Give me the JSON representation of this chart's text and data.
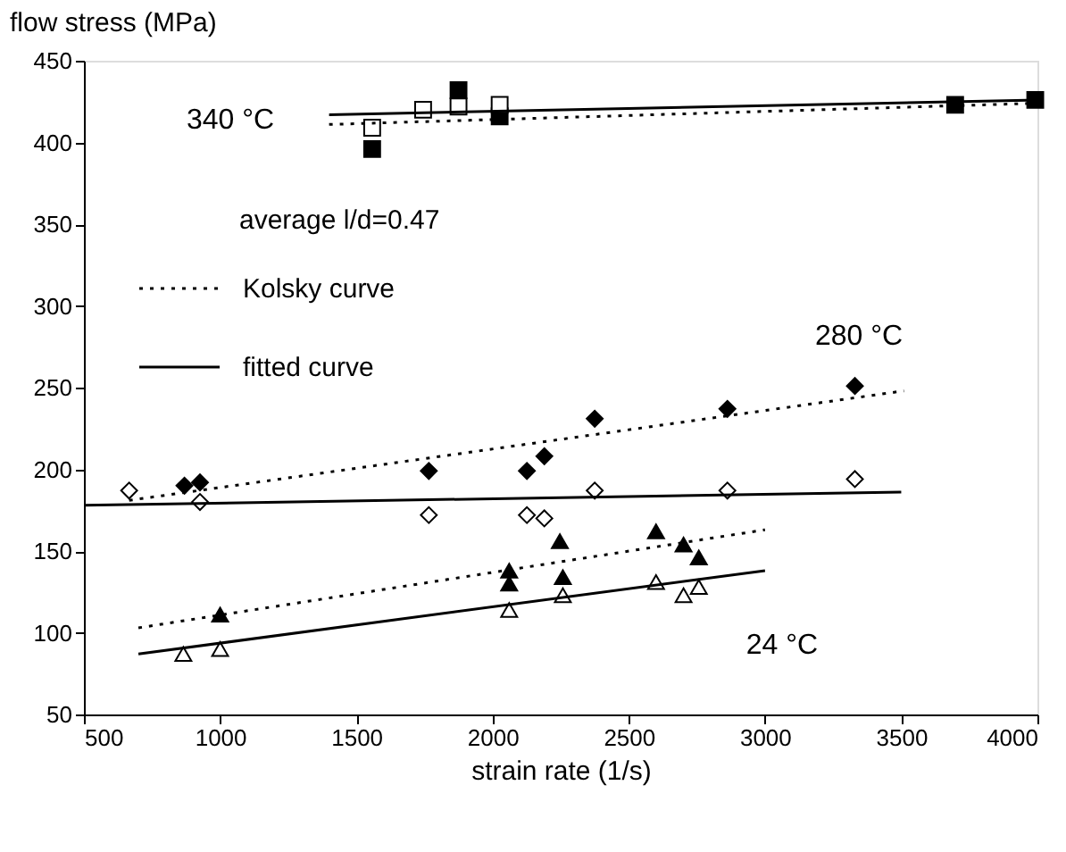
{
  "chart_data": {
    "type": "scatter",
    "xlabel": "strain rate (1/s)",
    "ylabel": "flow stress (MPa)",
    "xlim": [
      500,
      4000
    ],
    "ylim": [
      50,
      450
    ],
    "xticks": [
      500,
      1000,
      1500,
      2000,
      2500,
      3000,
      3500,
      4000
    ],
    "yticks": [
      50,
      100,
      150,
      200,
      250,
      300,
      350,
      400,
      450
    ],
    "grid": false,
    "legend": "top left",
    "annotations": [
      "340 °C",
      "280 °C",
      "24 °C",
      "average l/d=0.47"
    ],
    "series": [
      {
        "marker": "square",
        "color": "#000000",
        "x": [
          1558,
          1875,
          2026,
          3698,
          3992
        ],
        "values": [
          396,
          432,
          416,
          423,
          426
        ]
      },
      {
        "marker": "square",
        "color": "#ffffff",
        "x": [
          1558,
          1745,
          1875,
          2026
        ],
        "values": [
          409,
          420,
          422,
          423
        ]
      },
      {
        "marker": "diamond",
        "color": "#000000",
        "x": [
          869,
          926,
          1766,
          2126,
          2190,
          2375,
          2862,
          3330
        ],
        "values": [
          190,
          192,
          199,
          199,
          208,
          231,
          237,
          251
        ]
      },
      {
        "marker": "diamond",
        "color": "#ffffff",
        "x": [
          666,
          926,
          1766,
          2126,
          2190,
          2375,
          2862,
          3330
        ],
        "values": [
          187,
          180,
          172,
          172,
          170,
          187,
          187,
          194
        ]
      },
      {
        "marker": "triangle",
        "color": "#000000",
        "x": [
          1000,
          2061,
          2061,
          2247,
          2258,
          2600,
          2701,
          2757
        ],
        "values": [
          111,
          138,
          130,
          156,
          134,
          162,
          154,
          146
        ]
      },
      {
        "marker": "triangle",
        "color": "#ffffff",
        "x": [
          865,
          1000,
          2061,
          2258,
          2600,
          2701,
          2757
        ],
        "values": [
          87,
          90,
          114,
          123,
          131,
          123,
          128
        ]
      },
      {
        "type": "line",
        "name": "Kolsky curve",
        "line_style": "dotted",
        "color": "#000000",
        "x": [
          1400,
          4000
        ],
        "values": [
          411,
          424
        ]
      },
      {
        "type": "line",
        "name": "fitted curve",
        "line_style": "solid",
        "color": "#000000",
        "x": [
          1400,
          4000
        ],
        "values": [
          417,
          426
        ]
      },
      {
        "type": "line",
        "line_style": "dotted",
        "color": "#000000",
        "x": [
          666,
          3510
        ],
        "values": [
          181,
          248
        ]
      },
      {
        "type": "line",
        "line_style": "solid",
        "color": "#000000",
        "x": [
          500,
          3500
        ],
        "values": [
          178,
          186
        ]
      },
      {
        "type": "line",
        "line_style": "dotted",
        "color": "#000000",
        "x": [
          700,
          3000
        ],
        "values": [
          103,
          163
        ]
      },
      {
        "type": "line",
        "line_style": "solid",
        "color": "#000000",
        "x": [
          700,
          3000
        ],
        "values": [
          87,
          138
        ]
      }
    ]
  }
}
